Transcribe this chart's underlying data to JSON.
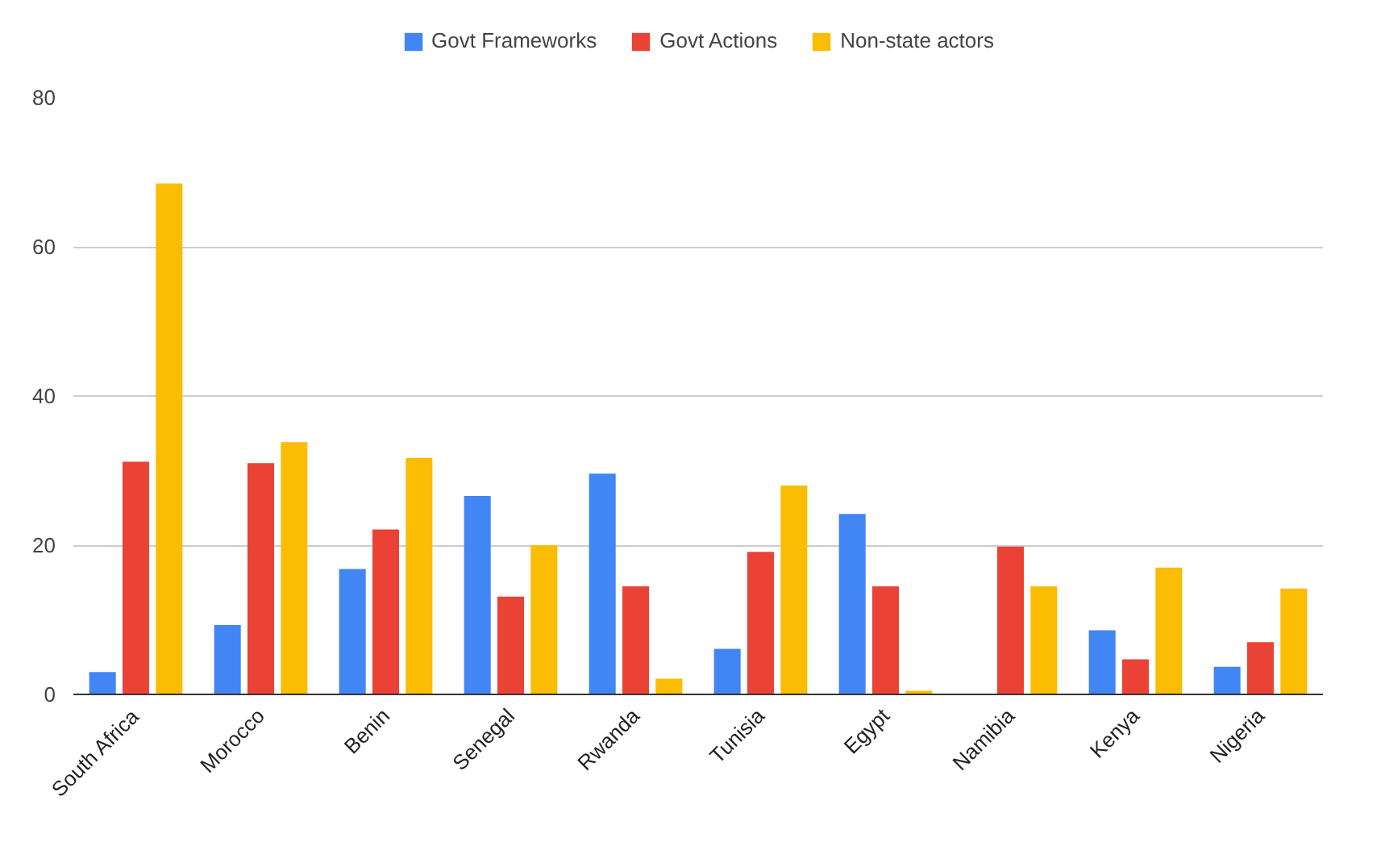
{
  "chart_data": {
    "type": "bar",
    "categories": [
      "South Africa",
      "Morocco",
      "Benin",
      "Senegal",
      "Rwanda",
      "Tunisia",
      "Egypt",
      "Namibia",
      "Kenya",
      "Nigeria"
    ],
    "series": [
      {
        "name": "Govt Frameworks",
        "color": "#4285f4",
        "values": [
          3.0,
          9.3,
          16.8,
          26.6,
          29.6,
          6.1,
          24.2,
          0,
          8.6,
          3.7
        ]
      },
      {
        "name": "Govt Actions",
        "color": "#ea4335",
        "values": [
          31.2,
          31.0,
          22.1,
          13.1,
          14.5,
          19.1,
          14.5,
          19.8,
          4.7,
          7.0
        ]
      },
      {
        "name": "Non-state actors",
        "color": "#fbbc04",
        "values": [
          68.5,
          33.8,
          31.7,
          20.0,
          2.1,
          28.0,
          0.5,
          14.5,
          17.0,
          14.2
        ]
      }
    ],
    "ylim": [
      0,
      80
    ],
    "yticks": [
      0,
      20,
      40,
      60,
      80
    ],
    "grid": "y",
    "legend": "top"
  }
}
